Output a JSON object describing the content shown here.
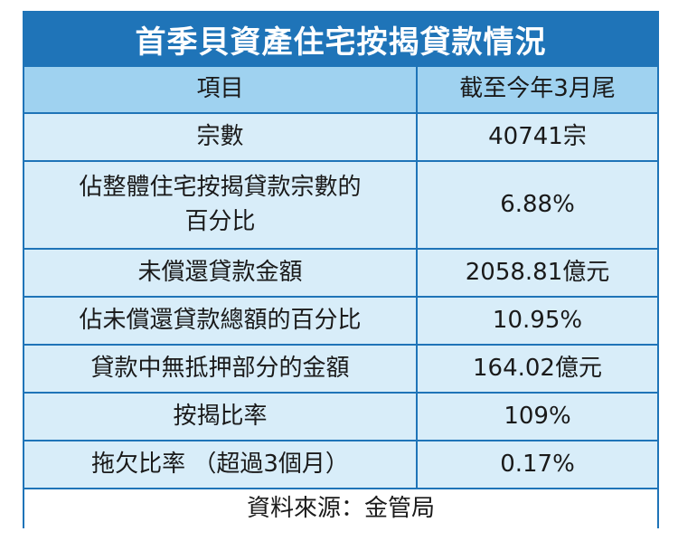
{
  "title": "首季貝資產住宅按揭貸款情況",
  "headers": {
    "item": "項目",
    "value": "截至今年3月尾"
  },
  "rows": [
    {
      "label": "宗數",
      "value": "40741宗"
    },
    {
      "label_line1": "佔整體住宅按揭貸款宗數的",
      "label_line2": "百分比",
      "value": "6.88%"
    },
    {
      "label": "未償還貸款金額",
      "value": "2058.81億元"
    },
    {
      "label": "佔未償還貸款總額的百分比",
      "value": "10.95%"
    },
    {
      "label": "貸款中無抵押部分的金額",
      "value": "164.02億元"
    },
    {
      "label": "按揭比率",
      "value": "109%"
    },
    {
      "label": "拖欠比率 （超過3個月）",
      "value": "0.17%"
    }
  ],
  "source": "資料來源：金管局",
  "colors": {
    "accent": "#1f74b8",
    "header_bg": "#9fd2f0",
    "row_bg": "#d8edf9"
  }
}
